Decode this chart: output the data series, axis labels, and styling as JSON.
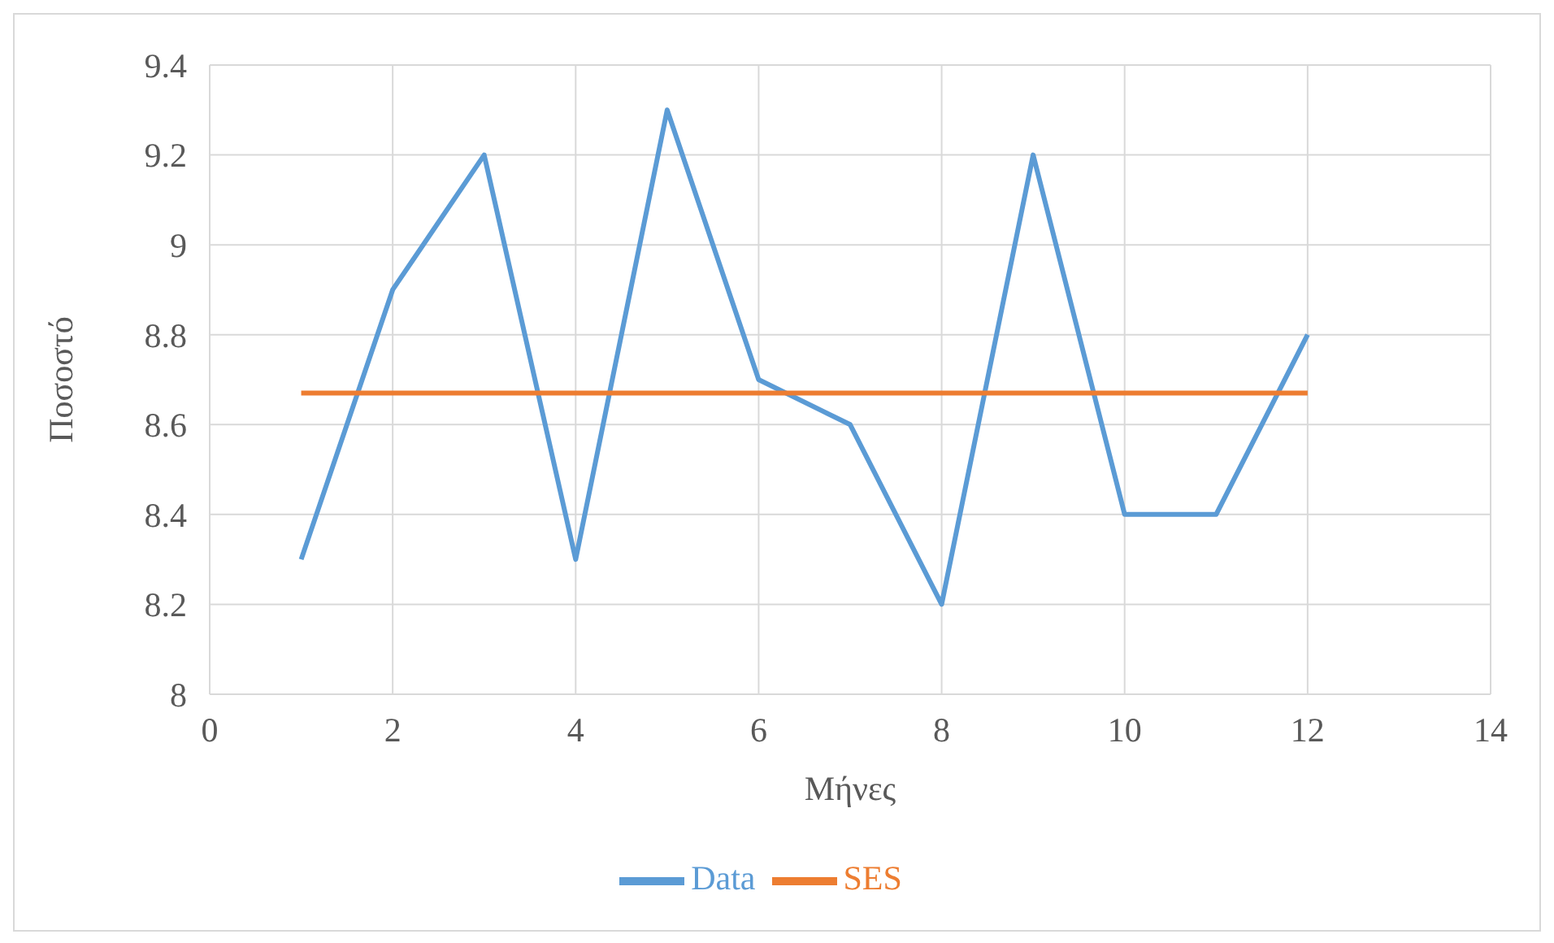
{
  "chart_data": {
    "type": "line",
    "xlabel": "Μήνες",
    "ylabel": "Ποσοστό",
    "x": [
      1,
      2,
      3,
      4,
      5,
      6,
      7,
      8,
      9,
      10,
      11,
      12
    ],
    "series": [
      {
        "name": "Data",
        "color": "#5b9bd5",
        "values": [
          8.3,
          8.9,
          9.2,
          8.3,
          9.3,
          8.7,
          8.6,
          8.2,
          9.2,
          8.4,
          8.4,
          8.8
        ]
      },
      {
        "name": "SES",
        "color": "#ed7d31",
        "values": [
          8.67,
          8.67,
          8.67,
          8.67,
          8.67,
          8.67,
          8.67,
          8.67,
          8.67,
          8.67,
          8.67,
          8.67
        ]
      }
    ],
    "xlim": [
      0,
      14
    ],
    "xticks": [
      0,
      2,
      4,
      6,
      8,
      10,
      12,
      14
    ],
    "ylim": [
      8,
      9.4
    ],
    "yticks": [
      8,
      8.2,
      8.4,
      8.6,
      8.8,
      9,
      9.2,
      9.4
    ],
    "grid": true,
    "legend": "bottom",
    "marker": "none",
    "line_style": "solid"
  }
}
